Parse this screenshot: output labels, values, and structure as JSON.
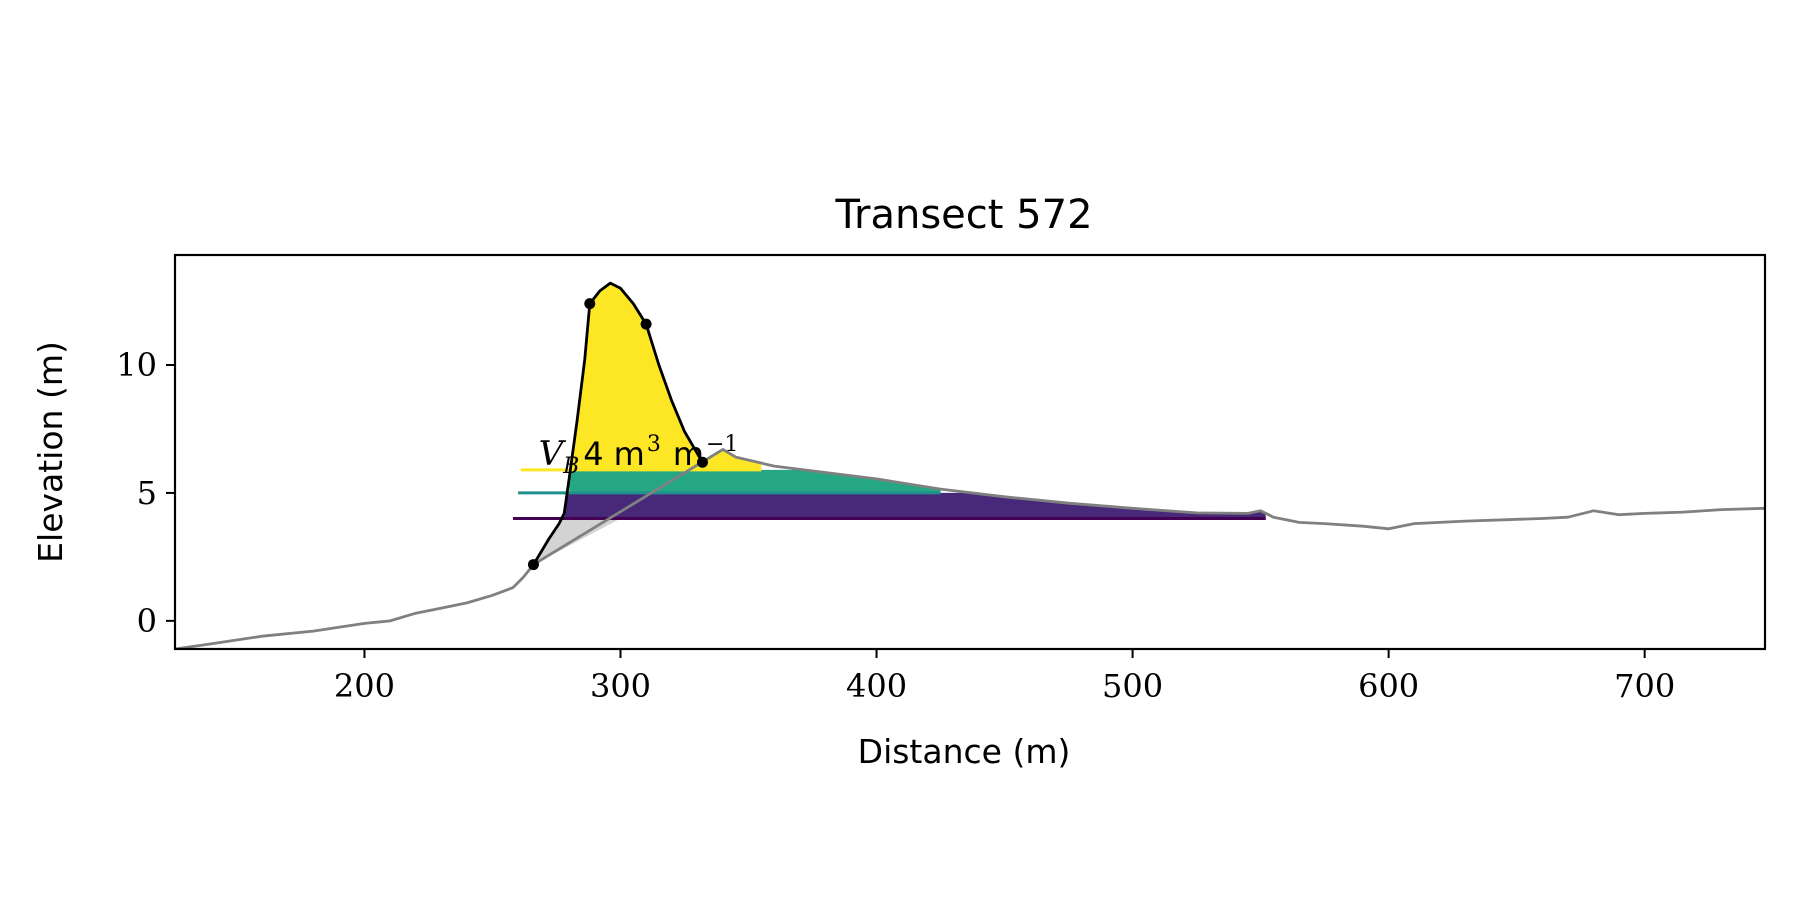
{
  "chart_data": {
    "type": "area",
    "title": "Transect 572",
    "xlabel": "Distance (m)",
    "ylabel": "Elevation (m)",
    "xlim": [
      126,
      747
    ],
    "ylim": [
      -1.1,
      14.3
    ],
    "xticks": [
      200,
      300,
      400,
      500,
      600,
      700
    ],
    "yticks": [
      0,
      5,
      10
    ],
    "grid": false,
    "annotation": {
      "symbol": "V",
      "subscript": "B",
      "value": "4",
      "unit": "m",
      "unit_exp": "3",
      "unit2": "m",
      "unit2_exp": "−1",
      "x": 268,
      "y": 6.4
    },
    "profile": {
      "color": "#808080",
      "points": [
        [
          126,
          -1.1
        ],
        [
          140,
          -0.9
        ],
        [
          160,
          -0.6
        ],
        [
          180,
          -0.4
        ],
        [
          200,
          -0.1
        ],
        [
          210,
          0.0
        ],
        [
          220,
          0.3
        ],
        [
          230,
          0.5
        ],
        [
          240,
          0.7
        ],
        [
          250,
          1.0
        ],
        [
          258,
          1.3
        ],
        [
          262,
          1.7
        ],
        [
          266,
          2.2
        ],
        [
          340,
          6.7
        ],
        [
          345,
          6.4
        ],
        [
          360,
          6.05
        ],
        [
          380,
          5.8
        ],
        [
          400,
          5.55
        ],
        [
          425,
          5.15
        ],
        [
          450,
          4.85
        ],
        [
          475,
          4.6
        ],
        [
          500,
          4.4
        ],
        [
          525,
          4.22
        ],
        [
          545,
          4.2
        ],
        [
          550,
          4.3
        ],
        [
          555,
          4.05
        ],
        [
          560,
          3.95
        ],
        [
          565,
          3.85
        ],
        [
          575,
          3.8
        ],
        [
          590,
          3.7
        ],
        [
          600,
          3.6
        ],
        [
          610,
          3.8
        ],
        [
          620,
          3.85
        ],
        [
          630,
          3.9
        ],
        [
          645,
          3.95
        ],
        [
          660,
          4.0
        ],
        [
          670,
          4.05
        ],
        [
          680,
          4.3
        ],
        [
          690,
          4.15
        ],
        [
          700,
          4.2
        ],
        [
          715,
          4.25
        ],
        [
          730,
          4.35
        ],
        [
          747,
          4.4
        ]
      ]
    },
    "dune_outline": {
      "color": "#000000",
      "points": [
        [
          266,
          2.2
        ],
        [
          272,
          3.2
        ],
        [
          276,
          3.8
        ],
        [
          278,
          4.2
        ],
        [
          280,
          5.6
        ],
        [
          283,
          7.8
        ],
        [
          286,
          10.2
        ],
        [
          288,
          12.4
        ],
        [
          292,
          12.9
        ],
        [
          296,
          13.2
        ],
        [
          300,
          13.0
        ],
        [
          305,
          12.4
        ],
        [
          310,
          11.6
        ],
        [
          315,
          10.0
        ],
        [
          320,
          8.6
        ],
        [
          325,
          7.4
        ],
        [
          332,
          6.2
        ]
      ]
    },
    "gray_fill": {
      "color": "#d3d3d3",
      "points": [
        [
          266,
          2.2
        ],
        [
          272,
          3.2
        ],
        [
          276,
          3.8
        ],
        [
          278,
          4.0
        ],
        [
          300,
          4.0
        ],
        [
          266,
          2.2
        ]
      ]
    },
    "layers": [
      {
        "color": "#482878",
        "line_color": "#440154",
        "level": 4.0,
        "top": 5.0,
        "line_x": [
          258,
          552
        ],
        "fill_x_end": 552
      },
      {
        "color": "#26a784",
        "line_color": "#21908d",
        "level": 5.0,
        "top": 5.9,
        "line_x": [
          260,
          425
        ],
        "fill_x_end": 425
      },
      {
        "color": "#fde725",
        "line_color": "#fde725",
        "level": 5.9,
        "top": 13.2,
        "line_x": [
          261,
          355
        ],
        "fill_x_end": 355
      }
    ],
    "markers": [
      [
        288,
        12.4
      ],
      [
        310,
        11.6
      ],
      [
        332,
        6.2
      ],
      [
        266,
        2.2
      ]
    ]
  }
}
